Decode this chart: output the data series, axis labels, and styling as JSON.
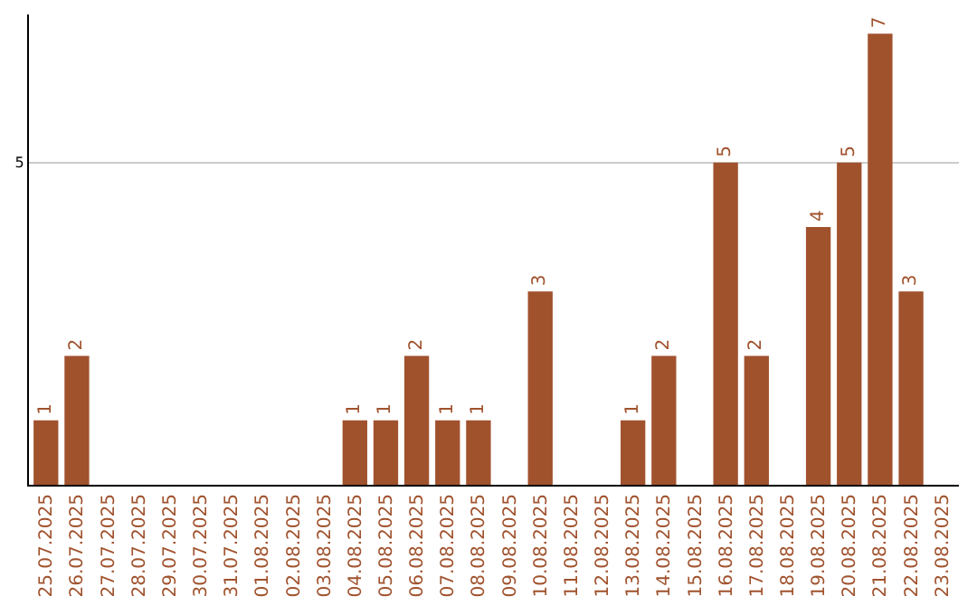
{
  "chart_data": {
    "type": "bar",
    "categories": [
      "25.07.2025",
      "26.07.2025",
      "27.07.2025",
      "28.07.2025",
      "29.07.2025",
      "30.07.2025",
      "31.07.2025",
      "01.08.2025",
      "02.08.2025",
      "03.08.2025",
      "04.08.2025",
      "05.08.2025",
      "06.08.2025",
      "07.08.2025",
      "08.08.2025",
      "09.08.2025",
      "10.08.2025",
      "11.08.2025",
      "12.08.2025",
      "13.08.2025",
      "14.08.2025",
      "15.08.2025",
      "16.08.2025",
      "17.08.2025",
      "18.08.2025",
      "19.08.2025",
      "20.08.2025",
      "21.08.2025",
      "22.08.2025",
      "23.08.2025"
    ],
    "values": [
      1,
      2,
      0,
      0,
      0,
      0,
      0,
      0,
      0,
      0,
      1,
      1,
      2,
      1,
      1,
      0,
      3,
      0,
      0,
      1,
      2,
      0,
      5,
      2,
      0,
      4,
      5,
      7,
      3,
      0
    ],
    "value_labels": [
      "1",
      "2",
      null,
      null,
      null,
      null,
      null,
      null,
      null,
      null,
      "1",
      "1",
      "2",
      "1",
      "1",
      null,
      "3",
      null,
      null,
      "1",
      "2",
      null,
      "5",
      "2",
      null,
      "4",
      "5",
      "7",
      "3",
      null
    ],
    "color": "#a0522d",
    "ylim": [
      0,
      7.3
    ],
    "yticks": [
      5
    ],
    "grid": "y",
    "legend": false
  }
}
